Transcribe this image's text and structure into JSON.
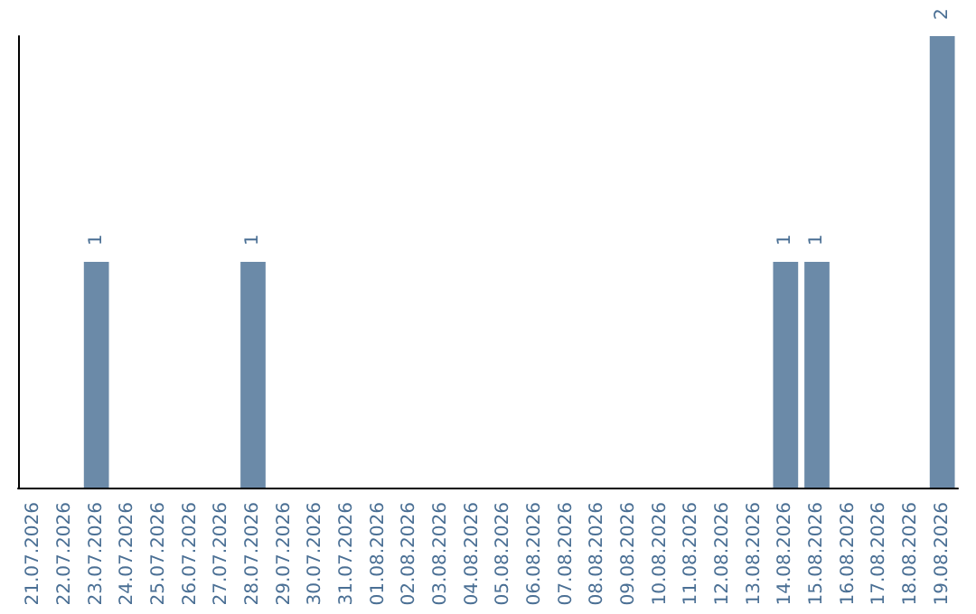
{
  "chart_data": {
    "type": "bar",
    "categories": [
      "21.07.2026",
      "22.07.2026",
      "23.07.2026",
      "24.07.2026",
      "25.07.2026",
      "26.07.2026",
      "27.07.2026",
      "28.07.2026",
      "29.07.2026",
      "30.07.2026",
      "31.07.2026",
      "01.08.2026",
      "02.08.2026",
      "03.08.2026",
      "04.08.2026",
      "05.08.2026",
      "06.08.2026",
      "07.08.2026",
      "08.08.2026",
      "09.08.2026",
      "10.08.2026",
      "11.08.2026",
      "12.08.2026",
      "13.08.2026",
      "14.08.2026",
      "15.08.2026",
      "16.08.2026",
      "17.08.2026",
      "18.08.2026",
      "19.08.2026"
    ],
    "values": [
      0,
      0,
      1,
      0,
      0,
      0,
      0,
      1,
      0,
      0,
      0,
      0,
      0,
      0,
      0,
      0,
      0,
      0,
      0,
      0,
      0,
      0,
      0,
      0,
      1,
      1,
      0,
      0,
      0,
      2
    ],
    "value_labels": [
      null,
      null,
      "1",
      null,
      null,
      null,
      null,
      "1",
      null,
      null,
      null,
      null,
      null,
      null,
      null,
      null,
      null,
      null,
      null,
      null,
      null,
      null,
      null,
      null,
      "1",
      "1",
      null,
      null,
      null,
      "2"
    ],
    "color": "#6b8aa8",
    "ylim": [
      0,
      2
    ],
    "tick_labels": "x",
    "grid": false
  }
}
